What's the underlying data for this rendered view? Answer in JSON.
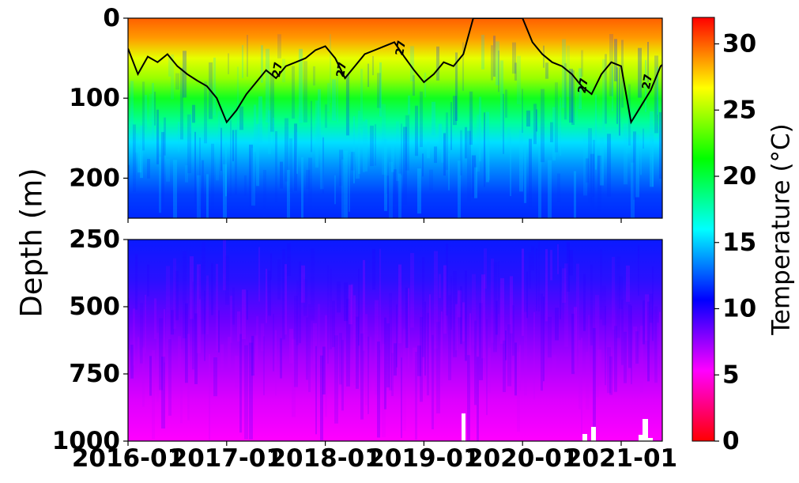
{
  "chart_data": {
    "type": "heatmap",
    "ylabel": "Depth (m)",
    "colorbar": {
      "label": "Temperature (°C)",
      "range": [
        0,
        32
      ],
      "ticks": [
        "0",
        "5",
        "10",
        "15",
        "20",
        "25",
        "30"
      ],
      "colormap": "hsv (red→magenta→blue→cyan→green→yellow→red)"
    },
    "xaxis": {
      "range": [
        "2016-01",
        "2021-06"
      ],
      "ticks": [
        "2016-01",
        "2017-01",
        "2018-01",
        "2019-01",
        "2020-01",
        "2021-01"
      ]
    },
    "upper_panel": {
      "ylim": [
        250,
        0
      ],
      "yticks": [
        "0",
        "100",
        "200"
      ],
      "contour": {
        "level": 27,
        "label": "27"
      }
    },
    "lower_panel": {
      "ylim": [
        1000,
        250
      ],
      "yticks": [
        "250",
        "500",
        "750",
        "1000"
      ]
    },
    "contour_27_depth_m": [
      [
        2016.0,
        38
      ],
      [
        2016.1,
        70
      ],
      [
        2016.2,
        48
      ],
      [
        2016.3,
        55
      ],
      [
        2016.4,
        45
      ],
      [
        2016.5,
        60
      ],
      [
        2016.6,
        70
      ],
      [
        2016.7,
        78
      ],
      [
        2016.8,
        85
      ],
      [
        2016.9,
        100
      ],
      [
        2017.0,
        130
      ],
      [
        2017.1,
        115
      ],
      [
        2017.2,
        95
      ],
      [
        2017.3,
        80
      ],
      [
        2017.4,
        65
      ],
      [
        2017.5,
        75
      ],
      [
        2017.6,
        60
      ],
      [
        2017.7,
        55
      ],
      [
        2017.8,
        50
      ],
      [
        2017.9,
        40
      ],
      [
        2018.0,
        35
      ],
      [
        2018.1,
        50
      ],
      [
        2018.2,
        75
      ],
      [
        2018.3,
        60
      ],
      [
        2018.4,
        45
      ],
      [
        2018.5,
        40
      ],
      [
        2018.6,
        35
      ],
      [
        2018.7,
        30
      ],
      [
        2018.8,
        48
      ],
      [
        2018.9,
        65
      ],
      [
        2019.0,
        80
      ],
      [
        2019.1,
        70
      ],
      [
        2019.2,
        55
      ],
      [
        2019.3,
        60
      ],
      [
        2019.4,
        45
      ],
      [
        2019.5,
        0
      ],
      [
        2020.0,
        0
      ],
      [
        2020.1,
        30
      ],
      [
        2020.2,
        45
      ],
      [
        2020.3,
        55
      ],
      [
        2020.4,
        60
      ],
      [
        2020.5,
        70
      ],
      [
        2020.6,
        85
      ],
      [
        2020.7,
        95
      ],
      [
        2020.8,
        70
      ],
      [
        2020.9,
        55
      ],
      [
        2021.0,
        60
      ],
      [
        2021.1,
        130
      ],
      [
        2021.2,
        110
      ],
      [
        2021.3,
        90
      ],
      [
        2021.4,
        60
      ],
      [
        2021.5,
        50
      ]
    ]
  }
}
